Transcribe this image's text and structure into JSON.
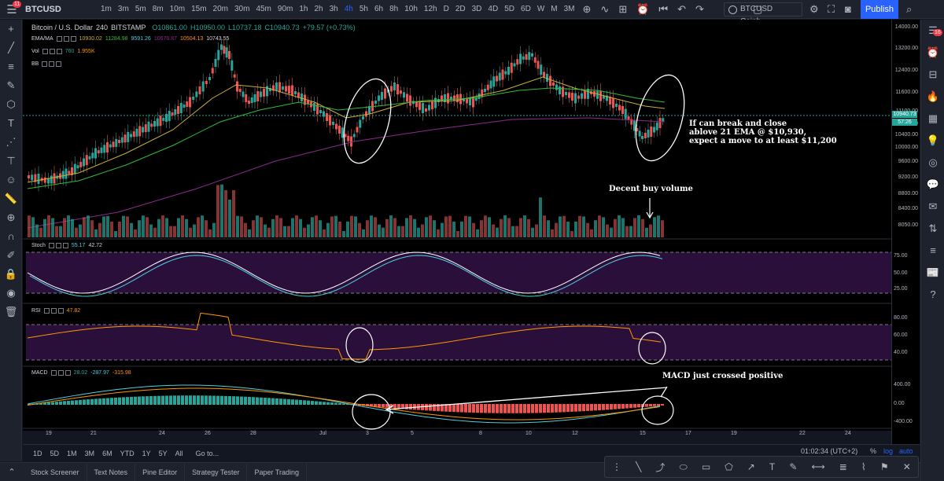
{
  "header": {
    "notif_count": "11",
    "symbol": "BTCUSD",
    "timeframes": [
      "1m",
      "3m",
      "5m",
      "8m",
      "10m",
      "15m",
      "20m",
      "30m",
      "45m",
      "90m",
      "1h",
      "2h",
      "3h",
      "4h",
      "5h",
      "6h",
      "8h",
      "10h",
      "12h",
      "D",
      "2D",
      "3D",
      "4D",
      "5D",
      "6D",
      "W",
      "M",
      "3M"
    ],
    "active_timeframe": "4h",
    "symbol_search": "BTCUSD Coinb...",
    "publish_label": "Publish"
  },
  "chart": {
    "title": "Bitcoin / U.S. Dollar",
    "interval": "240",
    "exchange": "BITSTAMP",
    "ohlc": {
      "o": "O10861.00",
      "h": "H10950.00",
      "l": "L10737.18",
      "c": "C10940.73",
      "chg": "+79.57 (+0.73%)"
    },
    "ema_ma": {
      "name": "EMA/MA",
      "v1": "10930.02",
      "v2": "11284.98",
      "v3": "9591.26",
      "v4": "10676.87",
      "v5": "10504.13",
      "v6": "10743.55"
    },
    "vol": {
      "name": "Vol",
      "v1": "760",
      "v2": "1.955K"
    },
    "bb": {
      "name": "BB"
    },
    "price_labels": [
      "14000.00",
      "13200.00",
      "12400.00",
      "11600.00",
      "11100.00",
      "10800.00",
      "10400.00",
      "10000.00",
      "9600.00",
      "9200.00",
      "8800.00",
      "8400.00",
      "8050.00"
    ],
    "last_price": "10940.73",
    "last_time": "57:26",
    "date_labels": [
      "19",
      "21",
      "24",
      "26",
      "28",
      "Jul",
      "3",
      "5",
      "8",
      "10",
      "12",
      "15",
      "17",
      "19",
      "22",
      "24"
    ]
  },
  "stoch": {
    "name": "Stoch",
    "v1": "55.17",
    "v2": "42.72",
    "axis": [
      "75.00",
      "50.00",
      "25.00"
    ]
  },
  "rsi": {
    "name": "RSI",
    "v1": "47.82",
    "axis": [
      "80.00",
      "60.00",
      "40.00"
    ]
  },
  "macd": {
    "name": "MACD",
    "v1": "28.02",
    "v2": "-287.97",
    "v3": "-315.98",
    "axis": [
      "400.00",
      "0.00",
      "-400.00"
    ]
  },
  "annotations": {
    "break": [
      "If can break and close",
      "ablove 21 EMA @ $10,930,",
      "expect a move to at least $11,200"
    ],
    "volume": "Decent buy volume",
    "macd": "MACD just crossed positive"
  },
  "range_bar": [
    "1D",
    "5D",
    "1M",
    "3M",
    "6M",
    "YTD",
    "1Y",
    "5Y",
    "All"
  ],
  "goto_label": "Go to...",
  "clock": "01:02:34 (UTC+2)",
  "scale_opts": [
    "%",
    "log",
    "auto"
  ],
  "bottom_tabs": [
    "Stock Screener",
    "Text Notes",
    "Pine Editor",
    "Strategy Tester",
    "Paper Trading"
  ],
  "right_badge": "16",
  "colors": {
    "up": "#26a69a",
    "down": "#ef5350",
    "bg": "#000000",
    "accent": "#2962ff",
    "stoch_bg": "#2a0f3a",
    "rsi_line": "#ff9800",
    "ema": "#c9b037",
    "ma": "#2ebd3a",
    "bb": "#8e2a8e"
  }
}
